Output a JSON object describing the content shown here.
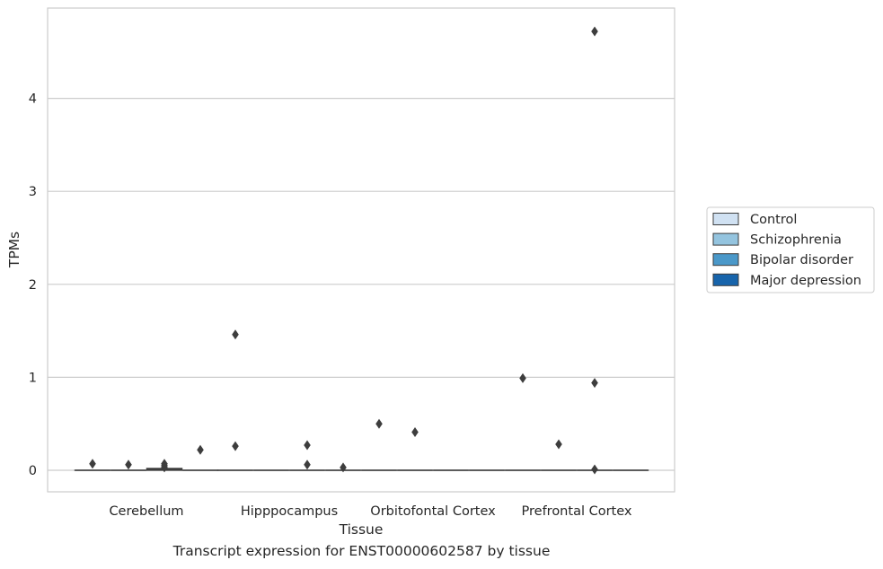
{
  "chart_data": {
    "type": "boxplot",
    "categories": [
      "Cerebellum",
      "Hipppocampus",
      "Orbitofontal Cortex",
      "Prefrontal Cortex"
    ],
    "xlabel": "Tissue",
    "ylabel": "TPMs",
    "ylim": [
      -0.23,
      4.97
    ],
    "yticks": [
      0,
      1,
      2,
      3,
      4
    ],
    "grid": "horizontal",
    "legend_placement": "right",
    "caption": "Transcript expression for ENST00000602587 by tissue",
    "series": [
      {
        "name": "Control",
        "color": "#d0e1f2",
        "boxes": [
          {
            "q1": 0,
            "median": 0,
            "q3": 0,
            "outliers": [
              0.07
            ]
          },
          {
            "q1": 0,
            "median": 0,
            "q3": 0,
            "outliers": [
              1.46,
              0.26
            ]
          },
          {
            "q1": 0,
            "median": 0,
            "q3": 0,
            "outliers": [
              0.5
            ]
          },
          {
            "q1": 0,
            "median": 0,
            "q3": 0,
            "outliers": [
              0.99
            ]
          }
        ]
      },
      {
        "name": "Schizophrenia",
        "color": "#94c4df",
        "boxes": [
          {
            "q1": 0,
            "median": 0,
            "q3": 0,
            "outliers": [
              0.06
            ]
          },
          {
            "q1": 0,
            "median": 0,
            "q3": 0,
            "outliers": []
          },
          {
            "q1": 0,
            "median": 0,
            "q3": 0,
            "outliers": [
              0.41
            ]
          },
          {
            "q1": 0,
            "median": 0,
            "q3": 0,
            "outliers": [
              0.28
            ]
          }
        ]
      },
      {
        "name": "Bipolar disorder",
        "color": "#4a98c9",
        "boxes": [
          {
            "q1": 0,
            "median": 0.01,
            "q3": 0.02,
            "outliers": [
              0.07,
              0.05,
              0.03
            ]
          },
          {
            "q1": 0,
            "median": 0,
            "q3": 0,
            "outliers": [
              0.27,
              0.06
            ]
          },
          {
            "q1": 0,
            "median": 0,
            "q3": 0,
            "outliers": []
          },
          {
            "q1": 0,
            "median": 0,
            "q3": 0,
            "outliers": [
              4.72,
              0.94,
              0.01
            ]
          }
        ]
      },
      {
        "name": "Major depression",
        "color": "#1764ab",
        "boxes": [
          {
            "q1": 0,
            "median": 0,
            "q3": 0,
            "outliers": [
              0.22
            ]
          },
          {
            "q1": 0,
            "median": 0,
            "q3": 0,
            "outliers": [
              0.03
            ]
          },
          {
            "q1": 0,
            "median": 0,
            "q3": 0,
            "outliers": []
          },
          {
            "q1": 0,
            "median": 0,
            "q3": 0,
            "outliers": []
          }
        ]
      }
    ]
  }
}
